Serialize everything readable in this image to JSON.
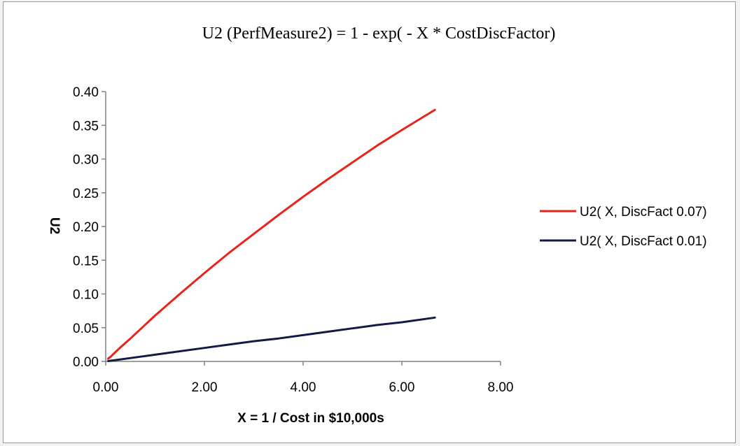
{
  "chart_data": {
    "type": "line",
    "title": "U2 (PerfMeasure2) = 1 - exp( - X * CostDiscFactor)",
    "xlabel": "X = 1 / Cost in $10,000s",
    "ylabel": "U2",
    "xlim": [
      0,
      8
    ],
    "ylim": [
      0,
      0.4
    ],
    "x_ticks": [
      "0.00",
      "2.00",
      "4.00",
      "6.00",
      "8.00"
    ],
    "y_ticks": [
      "0.00",
      "0.05",
      "0.10",
      "0.15",
      "0.20",
      "0.25",
      "0.30",
      "0.35",
      "0.40"
    ],
    "grid": false,
    "legend_position": "right",
    "x": [
      0.05,
      0.1,
      0.2,
      0.3,
      0.5,
      0.75,
      1.0,
      1.5,
      2.0,
      2.5,
      3.0,
      3.5,
      4.0,
      4.5,
      5.0,
      5.5,
      6.0,
      6.67
    ],
    "series": [
      {
        "name": "U2( X, DiscFact 0.07)",
        "color": "#e8231c",
        "values": [
          0.004,
          0.007,
          0.014,
          0.021,
          0.034,
          0.051,
          0.068,
          0.1,
          0.131,
          0.161,
          0.189,
          0.217,
          0.244,
          0.27,
          0.295,
          0.32,
          0.343,
          0.373
        ]
      },
      {
        "name": "U2( X, DiscFact 0.01)",
        "color": "#141a46",
        "values": [
          0.0005,
          0.001,
          0.002,
          0.003,
          0.005,
          0.0075,
          0.01,
          0.015,
          0.02,
          0.025,
          0.03,
          0.034,
          0.039,
          0.044,
          0.049,
          0.054,
          0.058,
          0.065
        ]
      }
    ]
  }
}
